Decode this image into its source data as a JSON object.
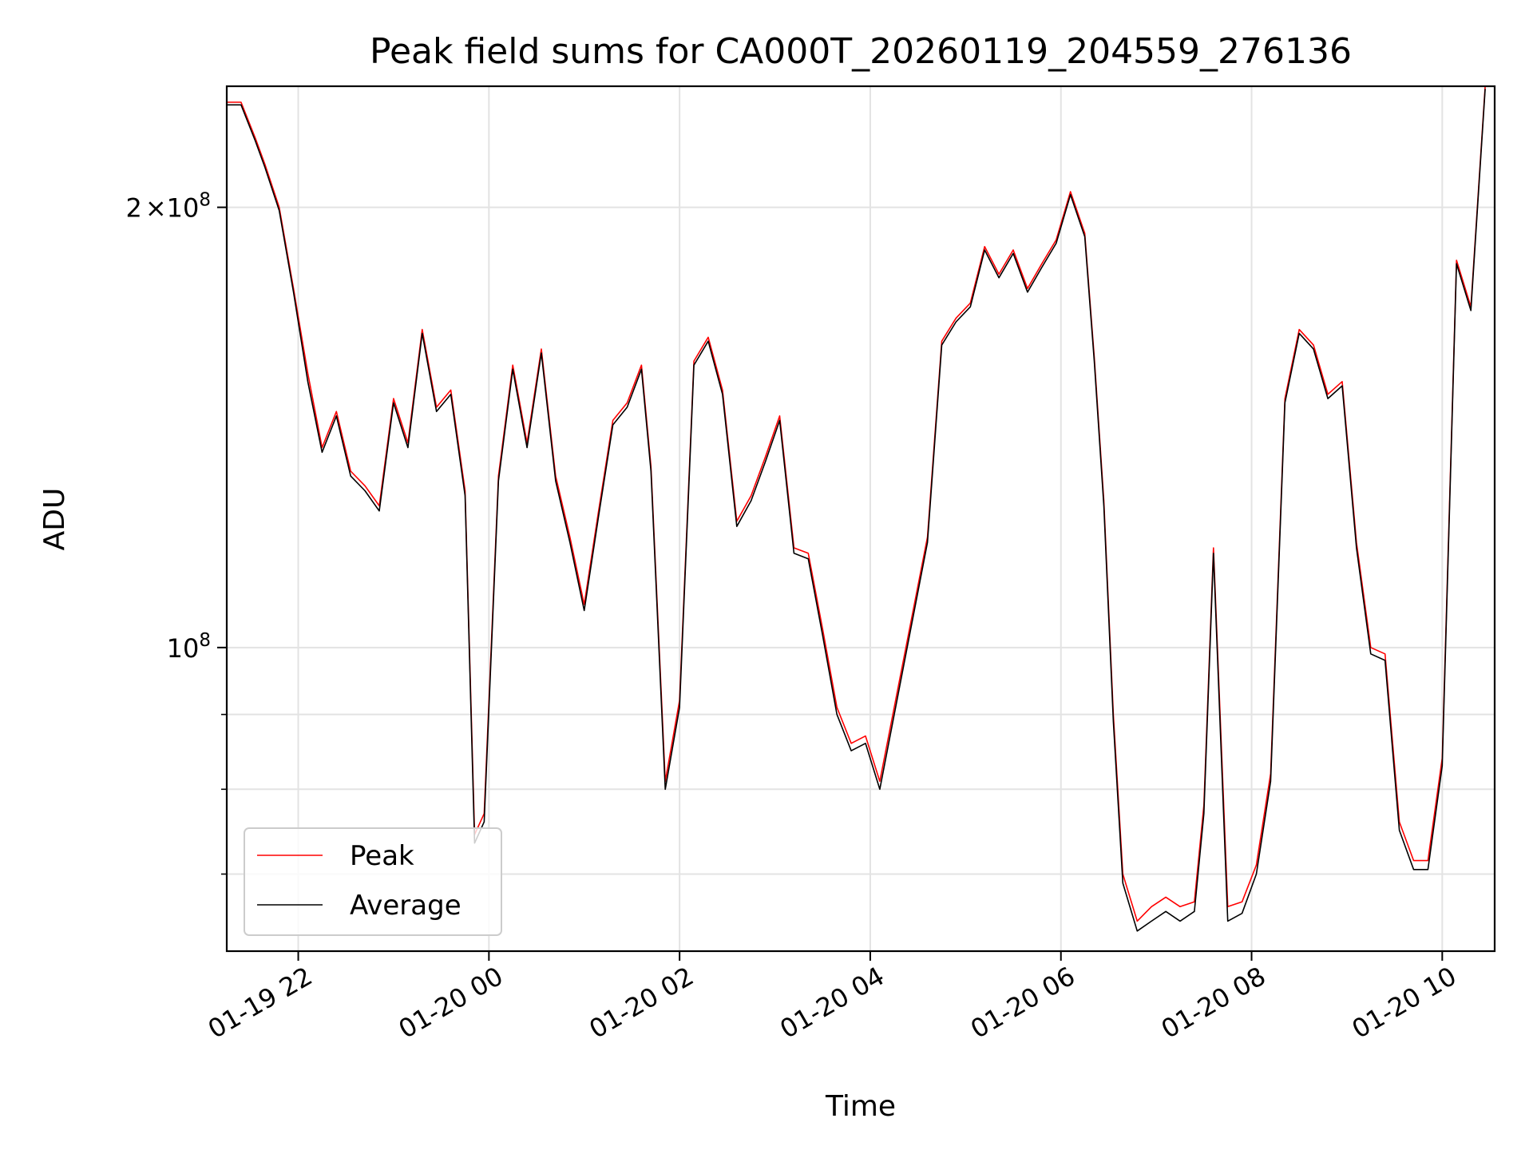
{
  "chart_data": {
    "type": "line",
    "title": "Peak field sums for CA000T_20260119_204559_276136",
    "xlabel": "Time",
    "ylabel": "ADU",
    "yscale": "log",
    "ylim": [
      62000000,
      242000000
    ],
    "xlim_hours": [
      -2.75,
      10.55
    ],
    "grid": true,
    "x_ticks": [
      {
        "hours": -2,
        "label": "01-19 22"
      },
      {
        "hours": 0,
        "label": "01-20 00"
      },
      {
        "hours": 2,
        "label": "01-20 02"
      },
      {
        "hours": 4,
        "label": "01-20 04"
      },
      {
        "hours": 6,
        "label": "01-20 06"
      },
      {
        "hours": 8,
        "label": "01-20 08"
      },
      {
        "hours": 10,
        "label": "01-20 10"
      }
    ],
    "y_major_ticks": [
      {
        "value": 100000000,
        "base": "10",
        "exp": "8"
      },
      {
        "value": 200000000,
        "mant": "2",
        "times": "×",
        "base": "10",
        "exp": "8"
      }
    ],
    "y_minor_ticks": [
      70000000,
      80000000,
      90000000
    ],
    "legend": {
      "position": "lower-left",
      "entries": [
        "Peak",
        "Average"
      ]
    },
    "series": [
      {
        "name": "Peak",
        "color": "#ff0000",
        "x_hours": [
          -2.75,
          -2.6,
          -2.45,
          -2.35,
          -2.2,
          -2.05,
          -1.9,
          -1.75,
          -1.6,
          -1.45,
          -1.3,
          -1.15,
          -1.0,
          -0.85,
          -0.7,
          -0.55,
          -0.4,
          -0.25,
          -0.15,
          -0.05,
          0.1,
          0.25,
          0.4,
          0.55,
          0.7,
          0.85,
          1.0,
          1.15,
          1.3,
          1.45,
          1.6,
          1.7,
          1.85,
          2.0,
          2.15,
          2.3,
          2.45,
          2.6,
          2.75,
          2.9,
          3.05,
          3.2,
          3.35,
          3.5,
          3.65,
          3.8,
          3.95,
          4.1,
          4.6,
          4.75,
          4.9,
          5.05,
          5.2,
          5.35,
          5.5,
          5.65,
          5.8,
          5.95,
          6.1,
          6.25,
          6.35,
          6.45,
          6.55,
          6.65,
          6.8,
          6.95,
          7.1,
          7.25,
          7.4,
          7.5,
          7.6,
          7.75,
          7.9,
          8.05,
          8.2,
          8.35,
          8.5,
          8.65,
          8.8,
          8.95,
          9.1,
          9.25,
          9.4,
          9.55,
          9.7,
          9.85,
          10.0,
          10.15,
          10.3,
          10.45
        ],
        "values": [
          236000000,
          236000000,
          223000000,
          214000000,
          200000000,
          176000000,
          154000000,
          137000000,
          145000000,
          132000000,
          129000000,
          125000000,
          148000000,
          138000000,
          165000000,
          146000000,
          150000000,
          128000000,
          74500000,
          77000000,
          131000000,
          156000000,
          138000000,
          160000000,
          131000000,
          119000000,
          107000000,
          124000000,
          143000000,
          147000000,
          156000000,
          133000000,
          81000000,
          92000000,
          157000000,
          163000000,
          150000000,
          122000000,
          127000000,
          135000000,
          144000000,
          117000000,
          116000000,
          103000000,
          91000000,
          86000000,
          87000000,
          81000000,
          119000000,
          162000000,
          168000000,
          172000000,
          188000000,
          180000000,
          187000000,
          176000000,
          183000000,
          190000000,
          205000000,
          192000000,
          158000000,
          126000000,
          90000000,
          70000000,
          65000000,
          66500000,
          67500000,
          66500000,
          67000000,
          78000000,
          117000000,
          66500000,
          67000000,
          71000000,
          82000000,
          148000000,
          165000000,
          161000000,
          149000000,
          152000000,
          118000000,
          100000000,
          99000000,
          76000000,
          71500000,
          71500000,
          84000000,
          184000000,
          171000000,
          242000000
        ]
      },
      {
        "name": "Average",
        "color": "#000000",
        "x_hours": [
          -2.75,
          -2.6,
          -2.45,
          -2.35,
          -2.2,
          -2.05,
          -1.9,
          -1.75,
          -1.6,
          -1.45,
          -1.3,
          -1.15,
          -1.0,
          -0.85,
          -0.7,
          -0.55,
          -0.4,
          -0.25,
          -0.15,
          -0.05,
          0.1,
          0.25,
          0.4,
          0.55,
          0.7,
          0.85,
          1.0,
          1.15,
          1.3,
          1.45,
          1.6,
          1.7,
          1.85,
          2.0,
          2.15,
          2.3,
          2.45,
          2.6,
          2.75,
          2.9,
          3.05,
          3.2,
          3.35,
          3.5,
          3.65,
          3.8,
          3.95,
          4.1,
          4.6,
          4.75,
          4.9,
          5.05,
          5.2,
          5.35,
          5.5,
          5.65,
          5.8,
          5.95,
          6.1,
          6.25,
          6.35,
          6.45,
          6.55,
          6.65,
          6.8,
          6.95,
          7.1,
          7.25,
          7.4,
          7.5,
          7.6,
          7.75,
          7.9,
          8.05,
          8.2,
          8.35,
          8.5,
          8.65,
          8.8,
          8.95,
          9.1,
          9.25,
          9.4,
          9.55,
          9.7,
          9.85,
          10.0,
          10.15,
          10.3,
          10.45
        ],
        "values": [
          235000000,
          235000000,
          222000000,
          213000000,
          199000000,
          175000000,
          152000000,
          136000000,
          144000000,
          131000000,
          128000000,
          124000000,
          147000000,
          137000000,
          164000000,
          145000000,
          149000000,
          127000000,
          73500000,
          76000000,
          130000000,
          155000000,
          137000000,
          159000000,
          130000000,
          118000000,
          106000000,
          123000000,
          142000000,
          146000000,
          155000000,
          132000000,
          80000000,
          91000000,
          156000000,
          162000000,
          149000000,
          121000000,
          126000000,
          134000000,
          143000000,
          116000000,
          115000000,
          102000000,
          90000000,
          85000000,
          86000000,
          80000000,
          118000000,
          161000000,
          167000000,
          171000000,
          187000000,
          179000000,
          186000000,
          175000000,
          182000000,
          189000000,
          204000000,
          191000000,
          157000000,
          125000000,
          89000000,
          69000000,
          64000000,
          65000000,
          66000000,
          65000000,
          66000000,
          77000000,
          116000000,
          65000000,
          65800000,
          70000000,
          81000000,
          147000000,
          164000000,
          160000000,
          148000000,
          151000000,
          117000000,
          99000000,
          98000000,
          75000000,
          70500000,
          70500000,
          83000000,
          183000000,
          170000000,
          241000000
        ]
      }
    ]
  }
}
